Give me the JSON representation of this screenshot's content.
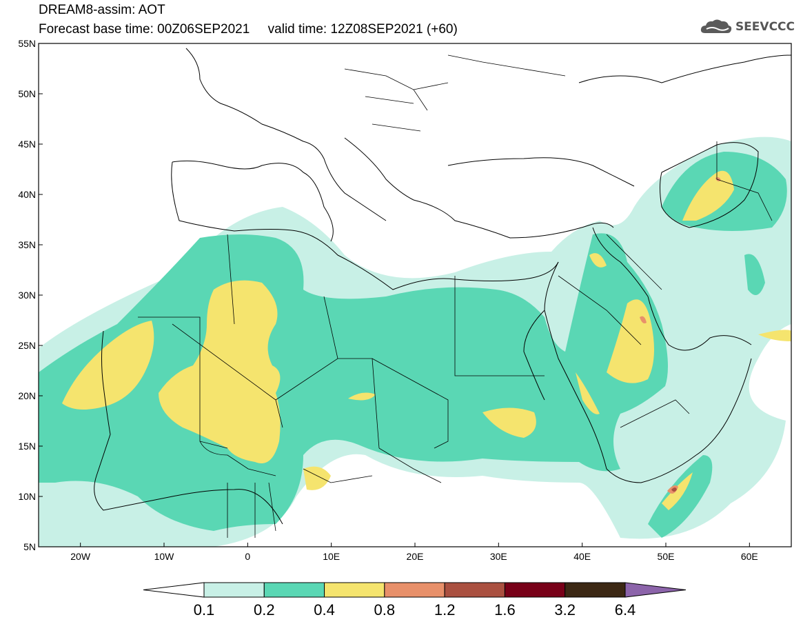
{
  "header": {
    "title_line1": "DREAM8-assim: AOT",
    "title_line2": "Forecast base time: 00Z06SEP2021     valid time: 12Z08SEP2021 (+60)"
  },
  "logo": {
    "text": "SEEVCCC",
    "icon": "cloud-icon"
  },
  "map": {
    "lat_labels": [
      "55N",
      "50N",
      "45N",
      "40N",
      "35N",
      "30N",
      "25N",
      "20N",
      "15N",
      "10N",
      "5N"
    ],
    "lon_labels": [
      "20W",
      "10W",
      "0",
      "10E",
      "20E",
      "30E",
      "40E",
      "50E",
      "60E"
    ],
    "lon_range": [
      -25,
      65
    ],
    "lat_range": [
      5,
      55
    ]
  },
  "colorbar": {
    "labels": [
      "0.1",
      "0.2",
      "0.4",
      "0.8",
      "1.2",
      "1.6",
      "3.2",
      "6.4"
    ],
    "colors": [
      "#ffffff",
      "#c8f0e6",
      "#5ad7b4",
      "#f5e46e",
      "#e8906a",
      "#aa5040",
      "#780018",
      "#3c2814",
      "#8c64aa"
    ]
  }
}
